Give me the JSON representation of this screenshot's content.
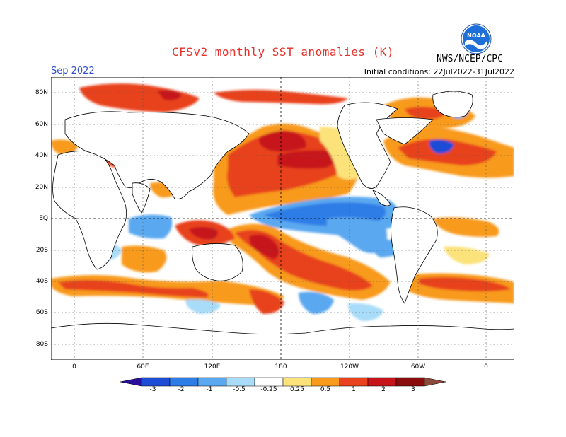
{
  "header": {
    "title": "CFSv2 monthly SST anomalies (K)",
    "agency": "NWS/NCEP/CPC",
    "logo_text": "NOAA",
    "month": "Sep 2022",
    "initial_conditions": "Initial conditions: 22Jul2022-31Jul2022"
  },
  "axes": {
    "lat_labels": [
      "80N",
      "60N",
      "40N",
      "20N",
      "EQ",
      "20S",
      "40S",
      "60S",
      "80S"
    ],
    "lon_labels": [
      "0",
      "60E",
      "120E",
      "180",
      "120W",
      "60W",
      "0"
    ]
  },
  "legend": {
    "labels": [
      "-3",
      "-2",
      "-1",
      "-0.5",
      "-0.25",
      "0.25",
      "0.5",
      "1",
      "2",
      "3"
    ],
    "colors": [
      "#2a0f9b",
      "#1d4cd6",
      "#2e7de6",
      "#5aa8f0",
      "#a8dcf8",
      "#ffffff",
      "#fce27a",
      "#f89a1c",
      "#e8421e",
      "#c6141a",
      "#8a0c0c",
      "#8b4a3c"
    ]
  },
  "colors": {
    "title": "#e8302a",
    "month": "#2f4fd0",
    "ocean_neutral": "#ffffff"
  }
}
